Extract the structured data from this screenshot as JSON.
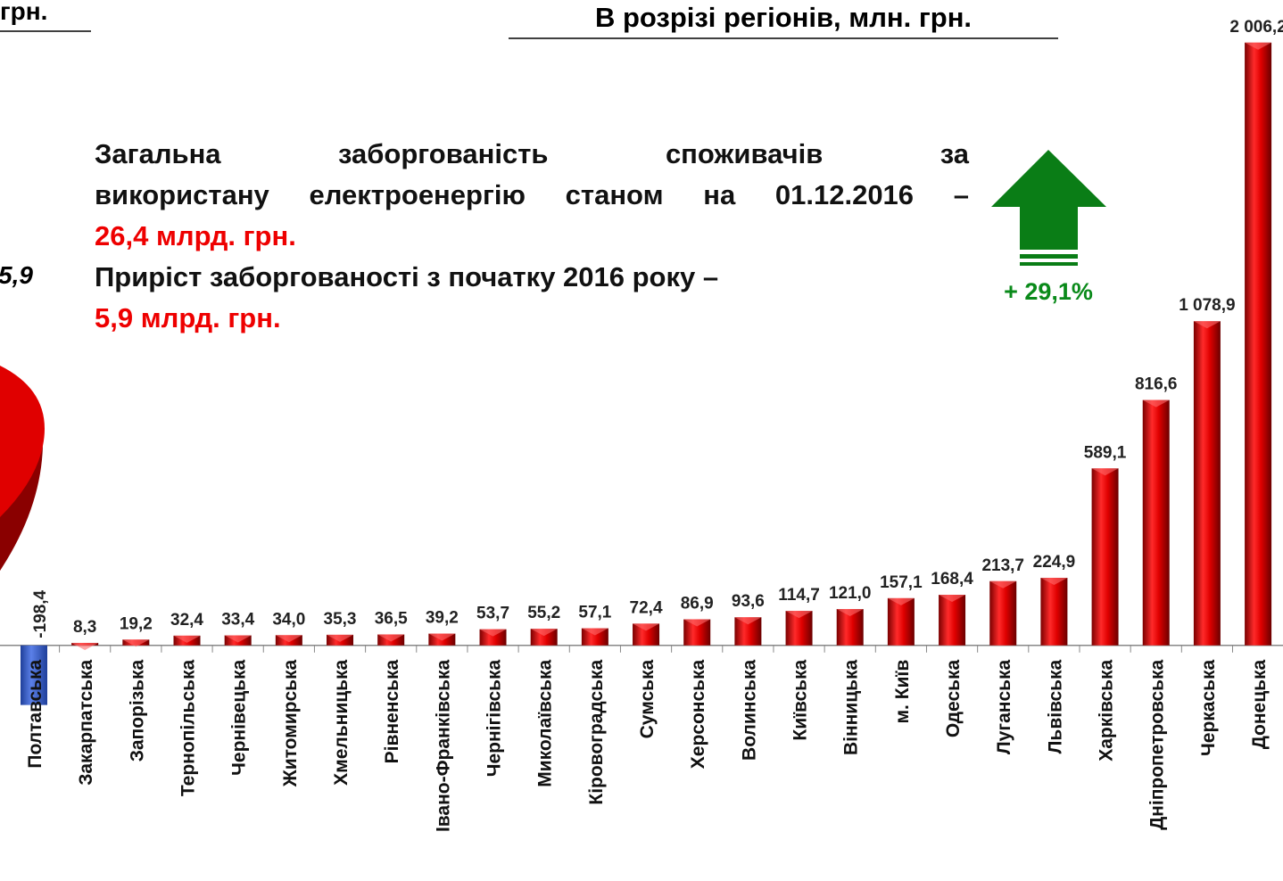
{
  "corner_title": "грн.",
  "pie_label": "5,9",
  "note": {
    "line1": "Загальна заборгованість споживачів за",
    "line2": "використану електроенергію станом на 01.12.2016 –",
    "total": "26,4 млрд. грн.",
    "line3": "Приріст заборгованості з початку 2016 року –",
    "growth": "5,9 млрд. грн."
  },
  "arrow_label": "+ 29,1%",
  "chart_data": {
    "type": "bar",
    "title": "В розрізі регіонів, млн. грн.",
    "categories": [
      "Полтавська",
      "Закарпатська",
      "Запорізька",
      "Тернопільська",
      "Чернівецька",
      "Житомирська",
      "Хмельницька",
      "Рівненська",
      "Івано-Франківська",
      "Чернігівська",
      "Миколаївська",
      "Кіровоградська",
      "Сумська",
      "Херсонська",
      "Волинська",
      "Київська",
      "Вінницька",
      "м. Київ",
      "Одеська",
      "Луганська",
      "Львівська",
      "Харківська",
      "Дніпропетровська",
      "Черкаська",
      "Донецька"
    ],
    "values": [
      -198.4,
      8.3,
      19.2,
      32.4,
      33.4,
      34.0,
      35.3,
      36.5,
      39.2,
      53.7,
      55.2,
      57.1,
      72.4,
      86.9,
      93.6,
      114.7,
      121.0,
      157.1,
      168.4,
      213.7,
      224.9,
      589.1,
      816.6,
      1078.9,
      2006.2
    ],
    "value_labels": [
      "-198,4",
      "8,3",
      "19,2",
      "32,4",
      "33,4",
      "34,0",
      "35,3",
      "36,5",
      "39,2",
      "53,7",
      "55,2",
      "57,1",
      "72,4",
      "86,9",
      "93,6",
      "114,7",
      "121,0",
      "157,1",
      "168,4",
      "213,7",
      "224,9",
      "589,1",
      "816,6",
      "1 078,9",
      "2 006,2"
    ],
    "color": "#e00000",
    "negative_color": "#3a62d0",
    "ylim": [
      -250,
      2050
    ]
  }
}
